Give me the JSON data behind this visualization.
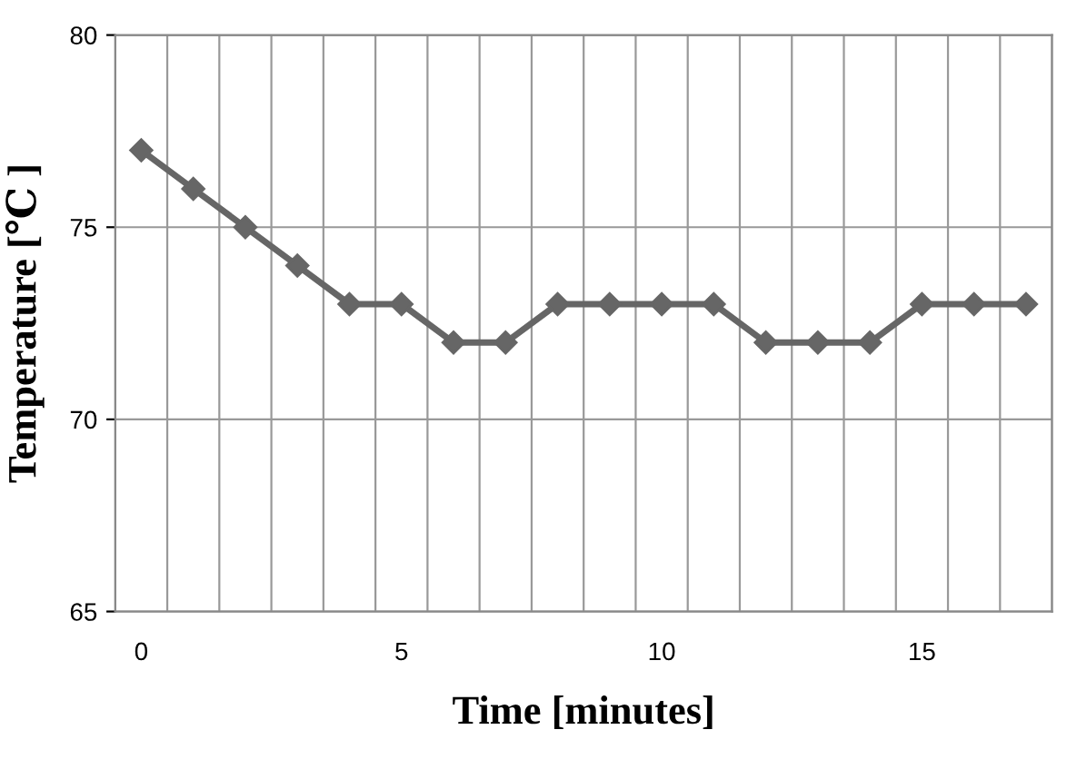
{
  "chart_data": {
    "type": "line",
    "xlabel": "Time [minutes]",
    "ylabel": "Temperature [℃ ]",
    "categories": [
      "0",
      null,
      null,
      null,
      null,
      "5",
      null,
      null,
      null,
      null,
      "10",
      null,
      null,
      null,
      null,
      "15",
      null,
      null
    ],
    "series": [
      {
        "color": "#666666",
        "values": [
          77,
          76,
          75,
          74,
          73,
          73,
          72,
          72,
          73,
          73,
          73,
          73,
          72,
          72,
          72,
          73,
          73,
          73
        ]
      }
    ],
    "ylim": [
      65,
      80
    ],
    "yticks": [
      65,
      70,
      75,
      80
    ],
    "grid": true,
    "marker": "diamond",
    "line_style": "solid"
  }
}
